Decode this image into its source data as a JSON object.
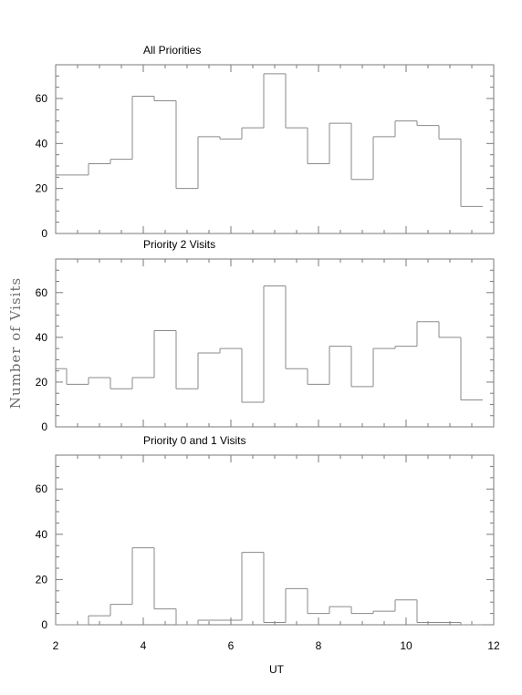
{
  "chart_data": [
    {
      "type": "histogram",
      "title": "All Priorities",
      "xlim": [
        2,
        12
      ],
      "ylim": [
        0,
        75
      ],
      "yticks": [
        0,
        20,
        40,
        60
      ],
      "xticks": [
        2,
        4,
        6,
        8,
        10,
        12
      ],
      "show_xtick_labels": false,
      "bin_edges": [
        2,
        2.75,
        3.25,
        3.75,
        4.25,
        4.75,
        5.25,
        5.75,
        6.25,
        6.75,
        7.25,
        7.75,
        8.25,
        8.75,
        9.25,
        9.75,
        10.25,
        10.75,
        11.25,
        11.75
      ],
      "values": [
        26,
        31,
        33,
        61,
        59,
        20,
        43,
        42,
        47,
        71,
        47,
        31,
        49,
        24,
        43,
        50,
        48,
        42,
        12
      ]
    },
    {
      "type": "histogram",
      "title": "Priority 2 Visits",
      "xlim": [
        2,
        12
      ],
      "ylim": [
        0,
        75
      ],
      "yticks": [
        0,
        20,
        40,
        60
      ],
      "xticks": [
        2,
        4,
        6,
        8,
        10,
        12
      ],
      "show_xtick_labels": false,
      "bin_edges": [
        2,
        2.25,
        2.75,
        3.25,
        3.75,
        4.25,
        4.75,
        5.25,
        5.75,
        6.25,
        6.75,
        7.25,
        7.75,
        8.25,
        8.75,
        9.25,
        9.75,
        10.25,
        10.75,
        11.25,
        11.75
      ],
      "values": [
        26,
        19,
        22,
        17,
        22,
        43,
        17,
        33,
        35,
        11,
        63,
        26,
        19,
        36,
        18,
        35,
        36,
        47,
        40,
        12
      ]
    },
    {
      "type": "histogram",
      "title": "Priority 0 and 1 Visits",
      "xlim": [
        2,
        12
      ],
      "ylim": [
        0,
        75
      ],
      "yticks": [
        0,
        20,
        40,
        60
      ],
      "xticks": [
        2,
        4,
        6,
        8,
        10,
        12
      ],
      "show_xtick_labels": true,
      "bin_edges": [
        2,
        2.75,
        3.25,
        3.75,
        4.25,
        4.75,
        5.25,
        5.75,
        6.25,
        6.75,
        7.25,
        7.75,
        8.25,
        8.75,
        9.25,
        9.75,
        10.25,
        10.75,
        11.25,
        11.75
      ],
      "values": [
        0,
        4,
        9,
        34,
        7,
        0,
        2,
        2,
        32,
        1,
        16,
        5,
        8,
        5,
        6,
        11,
        1,
        1,
        0
      ]
    }
  ],
  "xlabel": "UT",
  "ylabel": "Number of Visits"
}
